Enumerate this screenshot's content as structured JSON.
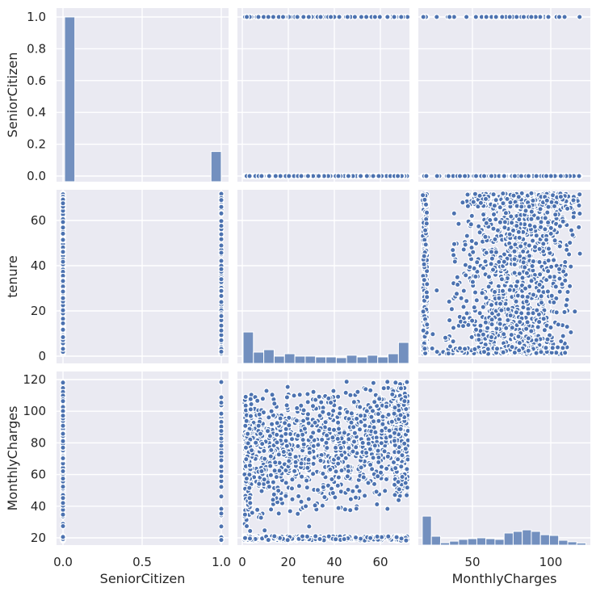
{
  "figure": {
    "kind": "seaborn-pairplot",
    "background": "#ffffff"
  },
  "style": {
    "panel_bg": "#eaeaf2",
    "grid_color": "#ffffff",
    "dot_fill": "#4c72b0",
    "dot_edge": "#ffffff",
    "bar_fill": "#7390bf",
    "bar_edge": "#ffffff",
    "text_color": "#262626"
  },
  "chart_data": {
    "type": "scatter",
    "subtype": "pairplot-scatter-matrix",
    "title": "",
    "variables": [
      "SeniorCitizen",
      "tenure",
      "MonthlyCharges"
    ],
    "axes": {
      "SeniorCitizen": {
        "label": "SeniorCitizen",
        "y_tick_values": [
          0.0,
          0.2,
          0.4,
          0.6,
          0.8,
          1.0
        ],
        "y_tick_labels": [
          "0.0",
          "0.2",
          "0.4",
          "0.6",
          "0.8",
          "1.0"
        ],
        "x_tick_values": [
          0.0,
          0.5,
          1.0
        ],
        "x_tick_labels": [
          "0.0",
          "0.5",
          "1.0"
        ],
        "data_range": [
          0,
          1
        ]
      },
      "tenure": {
        "label": "tenure",
        "y_tick_values": [
          0,
          20,
          40,
          60
        ],
        "y_tick_labels": [
          "0",
          "20",
          "40",
          "60"
        ],
        "x_tick_values": [
          0,
          20,
          40,
          60
        ],
        "x_tick_labels": [
          "0",
          "20",
          "40",
          "60"
        ],
        "data_range": [
          1,
          72
        ]
      },
      "MonthlyCharges": {
        "label": "MonthlyCharges",
        "y_tick_values": [
          20,
          40,
          60,
          80,
          100,
          120
        ],
        "y_tick_labels": [
          "20",
          "40",
          "60",
          "80",
          "100",
          "120"
        ],
        "x_tick_values": [
          50,
          100
        ],
        "x_tick_labels": [
          "50",
          "100"
        ],
        "data_range": [
          18.25,
          118.75
        ]
      }
    },
    "diagonal_histograms": [
      {
        "variable": "SeniorCitizen",
        "bars": [
          {
            "x0": 0.01,
            "x1": 0.075,
            "height_frac": 0.949
          },
          {
            "x0": 0.935,
            "x1": 1.0,
            "height_frac": 0.174
          }
        ]
      },
      {
        "variable": "tenure",
        "bin_start": 0.35,
        "bin_width": 4.5,
        "height_fracs": [
          0.181,
          0.065,
          0.079,
          0.042,
          0.056,
          0.042,
          0.042,
          0.037,
          0.037,
          0.033,
          0.047,
          0.037,
          0.047,
          0.037,
          0.056,
          0.121
        ]
      },
      {
        "variable": "MonthlyCharges",
        "bin_start": 18.0,
        "bin_width": 5.8,
        "height_fracs": [
          0.167,
          0.051,
          0.014,
          0.023,
          0.033,
          0.037,
          0.042,
          0.037,
          0.033,
          0.07,
          0.079,
          0.088,
          0.079,
          0.06,
          0.056,
          0.028,
          0.019,
          0.012
        ]
      }
    ],
    "scatter_panels": [
      {
        "row": 0,
        "col": 1,
        "x": "tenure",
        "y": "SeniorCitizen",
        "pattern": "two horizontal dot strips at y=0 and y=1 spanning tenure 1-72"
      },
      {
        "row": 0,
        "col": 2,
        "x": "MonthlyCharges",
        "y": "SeniorCitizen",
        "pattern": "two horizontal dot strips at y=0 and y=1 spanning charges 18-119"
      },
      {
        "row": 1,
        "col": 0,
        "x": "SeniorCitizen",
        "y": "tenure",
        "pattern": "two vertical dot strips at x=0 and x=1 spanning tenure 1-72"
      },
      {
        "row": 1,
        "col": 2,
        "x": "MonthlyCharges",
        "y": "tenure",
        "pattern": "dense cloud covering full range, sparser at low charges with high tenure"
      },
      {
        "row": 2,
        "col": 0,
        "x": "SeniorCitizen",
        "y": "MonthlyCharges",
        "pattern": "two vertical dot strips at x=0 and x=1 spanning charges 18-119"
      },
      {
        "row": 2,
        "col": 1,
        "x": "tenure",
        "y": "MonthlyCharges",
        "pattern": "dense cloud covering full range with bottom band near charges 20"
      }
    ],
    "point_sample": {
      "seed": 11,
      "n": 1800,
      "senior_rate": 0.16,
      "tenure_min": 1,
      "tenure_max": 72,
      "mc_min": 18.25,
      "mc_max": 118.75,
      "mc_low_cluster_rate": 0.2
    }
  }
}
